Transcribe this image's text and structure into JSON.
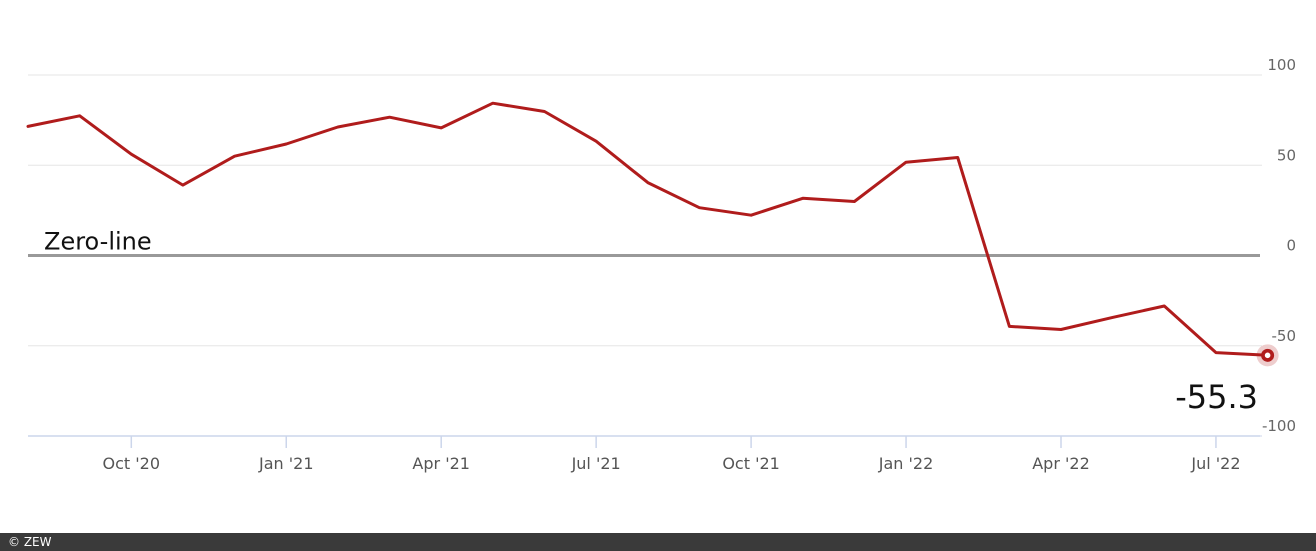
{
  "footer": {
    "credit": "© ZEW"
  },
  "chart_data": {
    "type": "line",
    "title": "",
    "xlabel": "",
    "ylabel": "",
    "ylim": [
      -100,
      100
    ],
    "y_ticks": [
      100,
      50,
      0,
      -50,
      -100
    ],
    "grid": true,
    "x_tick_labels": [
      "Oct '20",
      "Jan '21",
      "Apr '21",
      "Jul '21",
      "Oct '21",
      "Jan '22",
      "Apr '22",
      "Jul '22"
    ],
    "x": [
      "Aug '20",
      "Sep '20",
      "Oct '20",
      "Nov '20",
      "Dec '20",
      "Jan '21",
      "Feb '21",
      "Mar '21",
      "Apr '21",
      "May '21",
      "Jun '21",
      "Jul '21",
      "Aug '21",
      "Sep '21",
      "Oct '21",
      "Nov '21",
      "Dec '21",
      "Jan '22",
      "Feb '22",
      "Mar '22",
      "Apr '22",
      "May '22",
      "Jun '22",
      "Jul '22",
      "Aug '22"
    ],
    "series": [
      {
        "color": "#b01c1c",
        "values": [
          71.5,
          77.4,
          56.1,
          39.0,
          55.0,
          61.8,
          71.2,
          76.6,
          70.7,
          84.4,
          79.8,
          63.3,
          40.4,
          26.5,
          22.3,
          31.7,
          29.9,
          51.7,
          54.3,
          -39.3,
          -41.0,
          -34.3,
          -28.0,
          -53.8,
          -55.3
        ]
      }
    ],
    "reference_line": {
      "label": "Zero-line",
      "value": 0,
      "color": "#999999"
    },
    "highlight": {
      "label": "-55.3",
      "value": -55.3,
      "color": "#b01c1c"
    }
  }
}
